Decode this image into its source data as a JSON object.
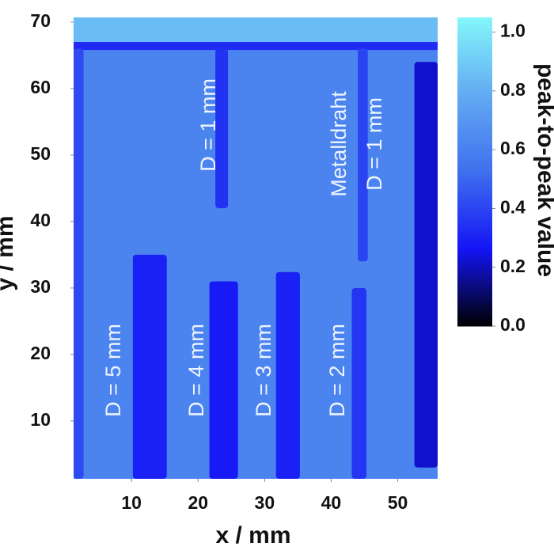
{
  "chart_data": {
    "type": "heatmap",
    "xlabel": "x / mm",
    "ylabel": "y / mm",
    "colorbar_label": "peak-to-peak value",
    "xlim": [
      1.3,
      56
    ],
    "ylim": [
      1.3,
      70.7
    ],
    "xticks": [
      10,
      20,
      30,
      40,
      50
    ],
    "yticks": [
      10,
      20,
      30,
      40,
      50,
      60,
      70
    ],
    "clim": [
      0,
      1.05
    ],
    "cticks": [
      {
        "value": 0,
        "label": "0.0"
      },
      0.2,
      0.4,
      0.6,
      0.8,
      {
        "value": 1,
        "label": "1.0"
      }
    ],
    "colormap": [
      "#000000",
      "#1414f5",
      "#3f6fee",
      "#62aaf2",
      "#84f6fb"
    ],
    "regions": [
      {
        "x": [
          1.3,
          56
        ],
        "y": [
          1.3,
          70.7
        ],
        "value": 0.62
      },
      {
        "x": [
          1.3,
          56
        ],
        "y": [
          67,
          70.7
        ],
        "value": 0.85
      },
      {
        "x": [
          1.3,
          56
        ],
        "y": [
          65.8,
          67
        ],
        "value": 0.33
      },
      {
        "x": [
          1.3,
          2.8
        ],
        "y": [
          1.3,
          66
        ],
        "value": 0.42
      },
      {
        "x": [
          22.6,
          24.5
        ],
        "y": [
          42,
          66
        ],
        "value": 0.35
      },
      {
        "x": [
          44,
          45.5
        ],
        "y": [
          34,
          66
        ],
        "value": 0.4
      },
      {
        "x": [
          52.5,
          56
        ],
        "y": [
          3,
          64
        ],
        "value": 0.22
      },
      {
        "x": [
          10.2,
          15.3
        ],
        "y": [
          1.3,
          35
        ],
        "value": 0.3
      },
      {
        "x": [
          21.7,
          26
        ],
        "y": [
          1.3,
          31
        ],
        "value": 0.28
      },
      {
        "x": [
          31.7,
          35.3
        ],
        "y": [
          1.3,
          32.4
        ],
        "value": 0.3
      },
      {
        "x": [
          43.1,
          45.3
        ],
        "y": [
          1.3,
          30
        ],
        "value": 0.36
      }
    ],
    "annotations": [
      "D = 5 mm",
      "D = 4 mm",
      "D = 3 mm",
      "D = 2 mm",
      "D = 1 mm",
      "Metalldraht",
      "D = 1 mm"
    ]
  }
}
